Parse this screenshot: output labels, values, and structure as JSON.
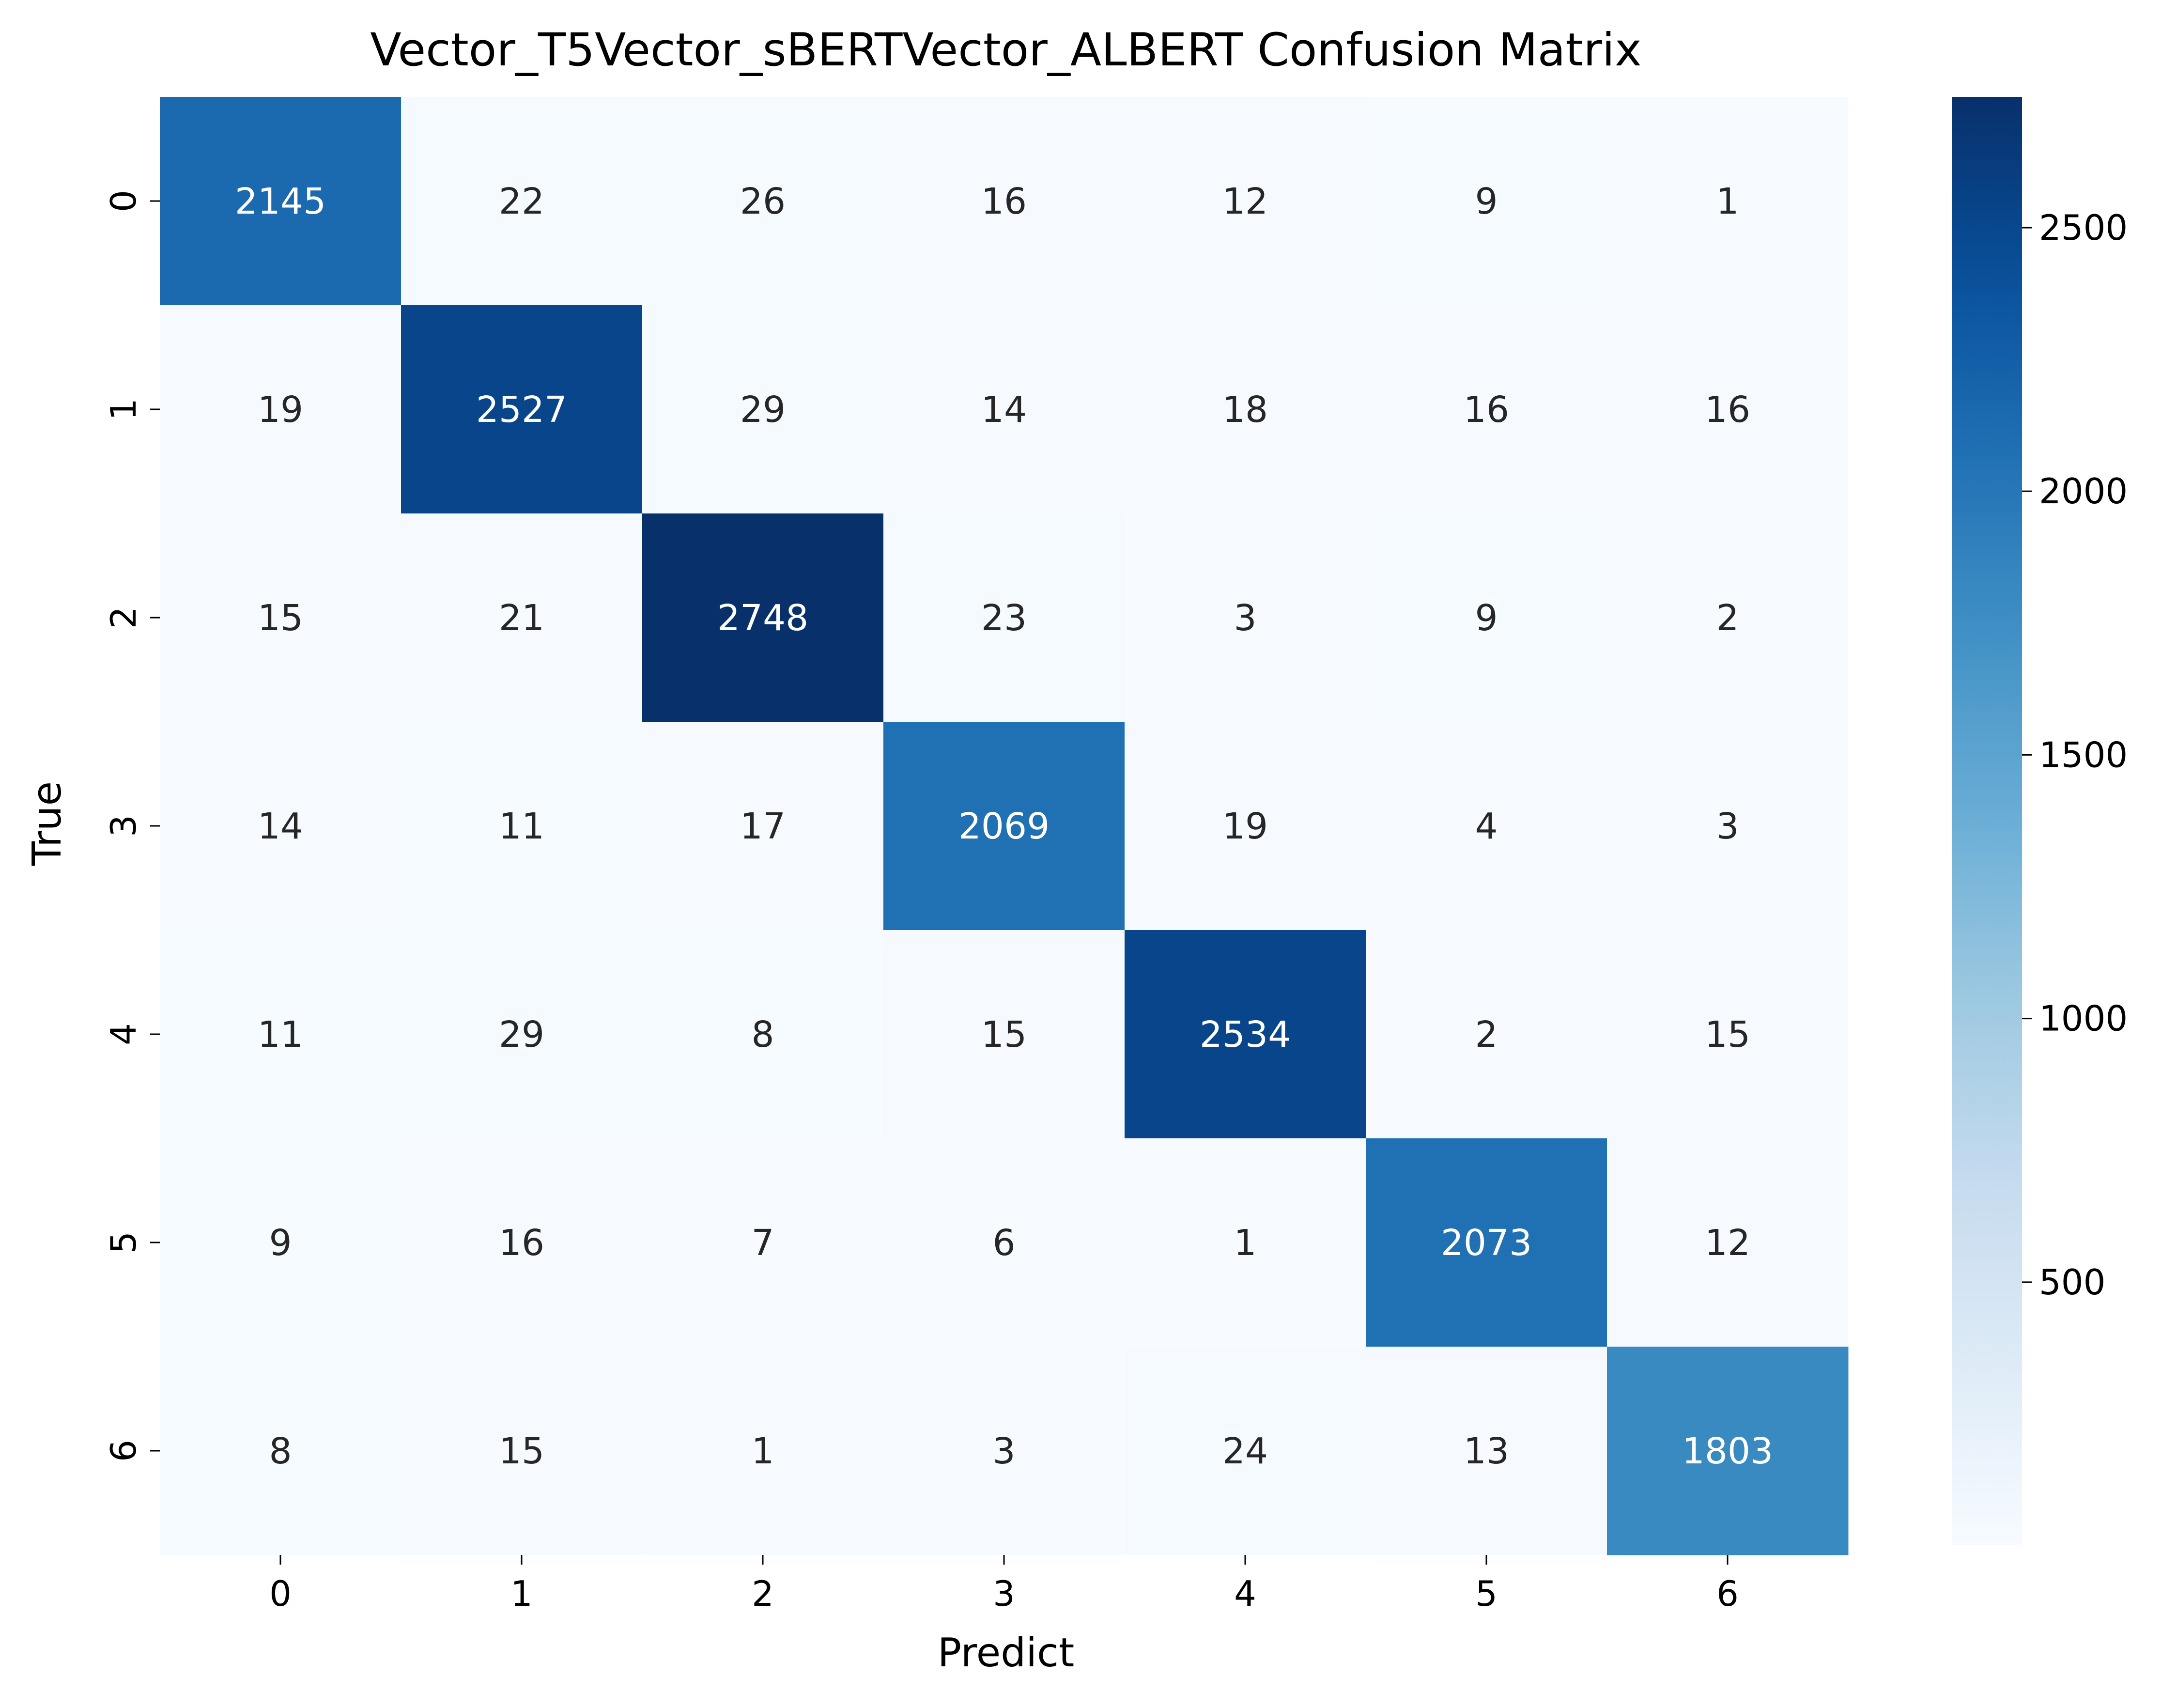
{
  "chart_data": {
    "type": "heatmap",
    "title": "Vector_T5Vector_sBERTVector_ALBERT Confusion Matrix",
    "xlabel": "Predict",
    "ylabel": "True",
    "x_categories": [
      "0",
      "1",
      "2",
      "3",
      "4",
      "5",
      "6"
    ],
    "y_categories": [
      "0",
      "1",
      "2",
      "3",
      "4",
      "5",
      "6"
    ],
    "values": [
      [
        2145,
        22,
        26,
        16,
        12,
        9,
        1
      ],
      [
        19,
        2527,
        29,
        14,
        18,
        16,
        16
      ],
      [
        15,
        21,
        2748,
        23,
        3,
        9,
        2
      ],
      [
        14,
        11,
        17,
        2069,
        19,
        4,
        3
      ],
      [
        11,
        29,
        8,
        15,
        2534,
        2,
        15
      ],
      [
        9,
        16,
        7,
        6,
        1,
        2073,
        12
      ],
      [
        8,
        15,
        1,
        3,
        24,
        13,
        1803
      ]
    ],
    "colorbar": {
      "colormap": "Blues",
      "vmin": 1,
      "vmax": 2748,
      "ticks": [
        500,
        1000,
        1500,
        2000,
        2500
      ],
      "tick_labels": [
        "500",
        "1000",
        "1500",
        "2000",
        "2500"
      ]
    },
    "colors": {
      "low": "#f7fbff",
      "high": "#08306b",
      "text_dark": "#262626",
      "text_light": "#ffffff"
    }
  }
}
